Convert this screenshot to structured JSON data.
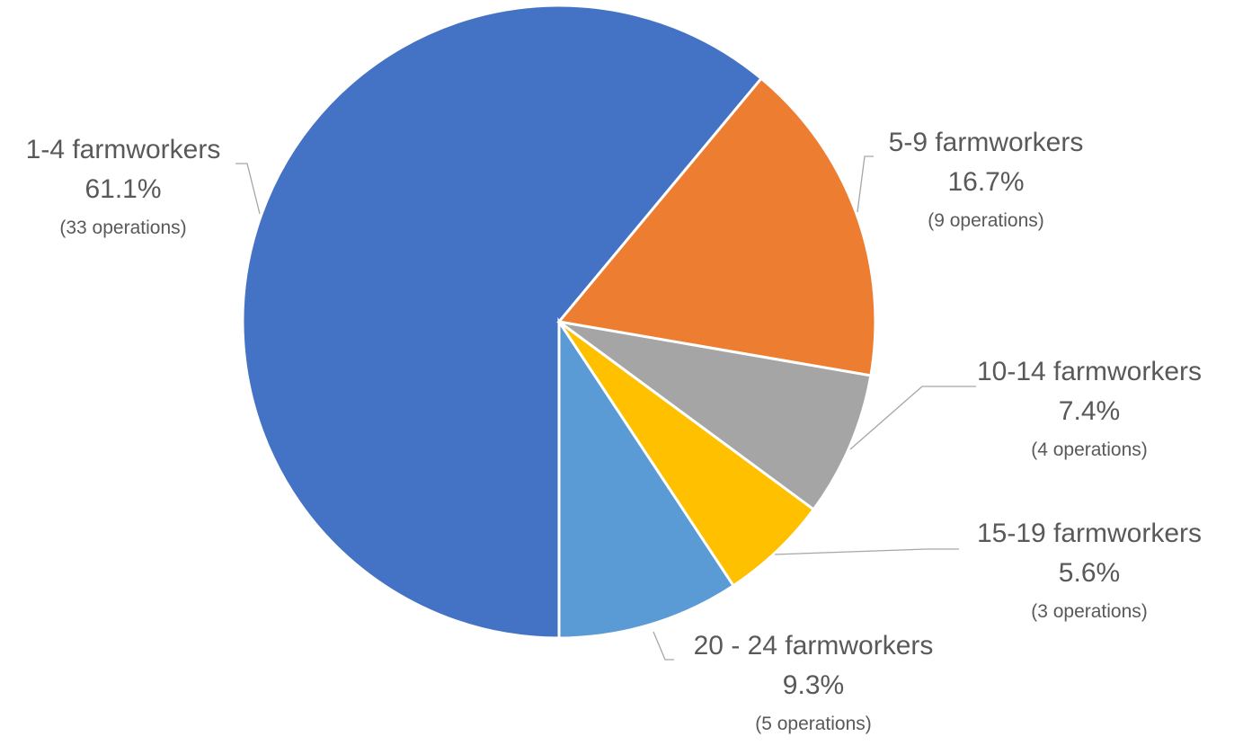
{
  "chart_data": {
    "type": "pie",
    "title": "",
    "slices": [
      {
        "label": "1-4 farmworkers",
        "percent": 61.1,
        "percent_label": "61.1%",
        "count_label": "(33 operations)",
        "color": "#4472C4"
      },
      {
        "label": "5-9 farmworkers",
        "percent": 16.7,
        "percent_label": "16.7%",
        "count_label": "(9 operations)",
        "color": "#ED7D31"
      },
      {
        "label": "10-14 farmworkers",
        "percent": 7.4,
        "percent_label": "7.4%",
        "count_label": "(4 operations)",
        "color": "#A5A5A5"
      },
      {
        "label": "15-19 farmworkers",
        "percent": 5.6,
        "percent_label": "5.6%",
        "count_label": "(3 operations)",
        "color": "#FFC000"
      },
      {
        "label": "20 - 24 farmworkers",
        "percent": 9.3,
        "percent_label": "9.3%",
        "count_label": "(5 operations)",
        "color": "#5B9BD5"
      }
    ]
  }
}
